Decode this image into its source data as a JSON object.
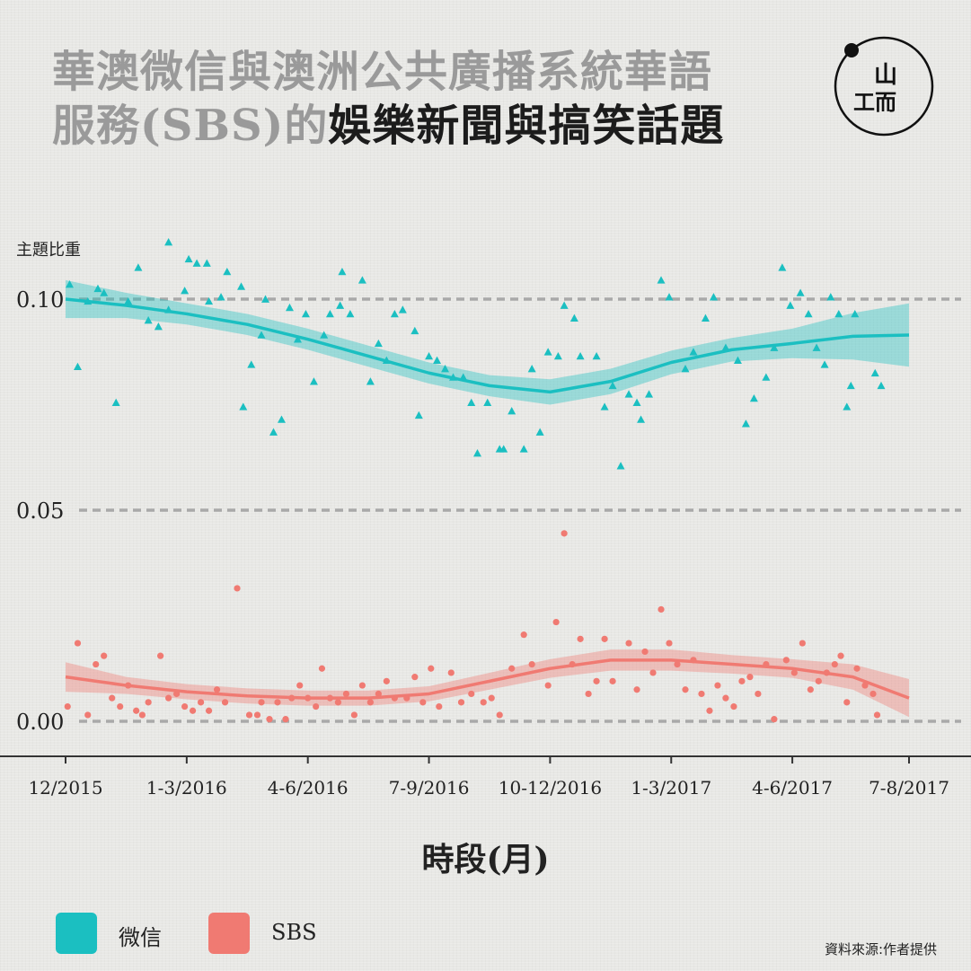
{
  "title": {
    "part1": "華澳微信與澳洲公共廣播系統華語",
    "part2": "服務(SBS)的",
    "part3": "娛樂新聞與搞笑話題"
  },
  "logo": {
    "glyph_top": "山",
    "glyph_bottom": "工而"
  },
  "source": "資料來源:作者提供",
  "colors": {
    "wechat": "#1bbfc1",
    "sbs": "#f07a72",
    "grid": "#a9a9a9",
    "axis": "#333333"
  },
  "chart_data": {
    "type": "scatter",
    "ylabel": "主題比重",
    "xlabel": "時段(月)",
    "ylim": [
      -0.004,
      0.112
    ],
    "yticks": [
      {
        "value": 0.1,
        "label": "0.10"
      },
      {
        "value": 0.05,
        "label": "0.05"
      },
      {
        "value": 0.0,
        "label": "0.00"
      }
    ],
    "xlim": [
      0,
      20
    ],
    "xticks": [
      {
        "x": 0,
        "label": "12/2015"
      },
      {
        "x": 3,
        "label": "1-3/2016"
      },
      {
        "x": 6,
        "label": "4-6/2016"
      },
      {
        "x": 9,
        "label": "7-9/2016"
      },
      {
        "x": 12,
        "label": "10-12/2016"
      },
      {
        "x": 15,
        "label": "1-3/2017"
      },
      {
        "x": 18,
        "label": "4-6/2017"
      },
      {
        "x": 21,
        "label": "7-8/2017"
      }
    ],
    "grid": "horizontal dashed",
    "legend_position": "bottom-left",
    "series": [
      {
        "name": "微信",
        "color": "#1bbfc1",
        "marker": "triangle",
        "smooth": {
          "x": [
            0,
            1.5,
            3,
            4.5,
            6,
            7.5,
            9,
            10.5,
            12,
            13.5,
            15,
            16.5,
            18,
            19.5,
            21
          ],
          "y": [
            0.1,
            0.0985,
            0.0965,
            0.094,
            0.0905,
            0.0865,
            0.0825,
            0.0795,
            0.078,
            0.0805,
            0.085,
            0.088,
            0.0895,
            0.0912,
            0.0915
          ],
          "band": [
            0.0045,
            0.003,
            0.0025,
            0.0025,
            0.0025,
            0.0025,
            0.0025,
            0.0025,
            0.003,
            0.003,
            0.0028,
            0.0028,
            0.0035,
            0.0055,
            0.0075
          ]
        },
        "points": [
          [
            0.1,
            0.1035
          ],
          [
            0.3,
            0.084
          ],
          [
            0.55,
            0.0995
          ],
          [
            0.8,
            0.1025
          ],
          [
            0.95,
            0.1015
          ],
          [
            1.25,
            0.0755
          ],
          [
            1.55,
            0.0995
          ],
          [
            1.8,
            0.1075
          ],
          [
            2.05,
            0.095
          ],
          [
            2.3,
            0.0935
          ],
          [
            2.55,
            0.0975
          ],
          [
            2.55,
            0.1135
          ],
          [
            2.95,
            0.102
          ],
          [
            3.05,
            0.1095
          ],
          [
            3.25,
            0.1085
          ],
          [
            3.5,
            0.1085
          ],
          [
            3.55,
            0.0995
          ],
          [
            3.85,
            0.1005
          ],
          [
            4.0,
            0.1065
          ],
          [
            4.35,
            0.103
          ],
          [
            4.4,
            0.0745
          ],
          [
            4.6,
            0.0845
          ],
          [
            4.85,
            0.0915
          ],
          [
            4.95,
            0.1
          ],
          [
            5.15,
            0.0685
          ],
          [
            5.35,
            0.0715
          ],
          [
            5.55,
            0.098
          ],
          [
            5.75,
            0.0905
          ],
          [
            5.95,
            0.0965
          ],
          [
            6.15,
            0.0805
          ],
          [
            6.4,
            0.0915
          ],
          [
            6.55,
            0.0965
          ],
          [
            6.8,
            0.0985
          ],
          [
            6.85,
            0.1065
          ],
          [
            7.05,
            0.0965
          ],
          [
            7.35,
            0.1045
          ],
          [
            7.55,
            0.0805
          ],
          [
            7.75,
            0.0895
          ],
          [
            7.95,
            0.0855
          ],
          [
            8.15,
            0.0965
          ],
          [
            8.35,
            0.0975
          ],
          [
            8.65,
            0.0925
          ],
          [
            8.75,
            0.0725
          ],
          [
            9.0,
            0.0865
          ],
          [
            9.2,
            0.0855
          ],
          [
            9.4,
            0.0835
          ],
          [
            9.6,
            0.0815
          ],
          [
            9.85,
            0.0815
          ],
          [
            10.05,
            0.0755
          ],
          [
            10.2,
            0.0635
          ],
          [
            10.45,
            0.0755
          ],
          [
            10.75,
            0.0645
          ],
          [
            10.85,
            0.0645
          ],
          [
            11.05,
            0.0735
          ],
          [
            11.35,
            0.0645
          ],
          [
            11.55,
            0.0835
          ],
          [
            11.75,
            0.0685
          ],
          [
            11.95,
            0.0875
          ],
          [
            12.2,
            0.0865
          ],
          [
            12.35,
            0.0985
          ],
          [
            12.6,
            0.0955
          ],
          [
            12.75,
            0.0865
          ],
          [
            13.15,
            0.0865
          ],
          [
            13.35,
            0.0745
          ],
          [
            13.55,
            0.0795
          ],
          [
            13.75,
            0.0605
          ],
          [
            13.95,
            0.0775
          ],
          [
            14.15,
            0.0755
          ],
          [
            14.25,
            0.0715
          ],
          [
            14.45,
            0.0775
          ],
          [
            14.75,
            0.1045
          ],
          [
            14.95,
            0.1005
          ],
          [
            15.35,
            0.0835
          ],
          [
            15.55,
            0.0875
          ],
          [
            15.85,
            0.0955
          ],
          [
            16.05,
            0.1005
          ],
          [
            16.35,
            0.0885
          ],
          [
            16.65,
            0.0855
          ],
          [
            16.85,
            0.0705
          ],
          [
            17.05,
            0.0765
          ],
          [
            17.35,
            0.0815
          ],
          [
            17.55,
            0.0885
          ],
          [
            17.75,
            0.1075
          ],
          [
            17.95,
            0.0985
          ],
          [
            18.2,
            0.1015
          ],
          [
            18.4,
            0.0965
          ],
          [
            18.6,
            0.0885
          ],
          [
            18.8,
            0.0845
          ],
          [
            18.95,
            0.1005
          ],
          [
            19.15,
            0.0965
          ],
          [
            19.35,
            0.0745
          ],
          [
            19.45,
            0.0795
          ],
          [
            19.55,
            0.0965
          ],
          [
            20.05,
            0.0825
          ],
          [
            20.2,
            0.0795
          ]
        ]
      },
      {
        "name": "SBS",
        "color": "#f07a72",
        "marker": "circle",
        "smooth": {
          "x": [
            0,
            1.5,
            3,
            4.5,
            6,
            7.5,
            9,
            10.5,
            12,
            13.5,
            15,
            16.5,
            18,
            19.5,
            21
          ],
          "y": [
            0.0105,
            0.0085,
            0.007,
            0.006,
            0.0055,
            0.0055,
            0.0065,
            0.0095,
            0.0125,
            0.0145,
            0.0145,
            0.0135,
            0.0125,
            0.0105,
            0.0055
          ],
          "band": [
            0.0035,
            0.002,
            0.0018,
            0.0018,
            0.0018,
            0.0018,
            0.0018,
            0.002,
            0.0022,
            0.0025,
            0.0025,
            0.0022,
            0.0022,
            0.003,
            0.0045
          ]
        },
        "points": [
          [
            0.05,
            0.0035
          ],
          [
            0.3,
            0.0185
          ],
          [
            0.55,
            0.0015
          ],
          [
            0.75,
            0.0135
          ],
          [
            0.95,
            0.0155
          ],
          [
            1.15,
            0.0055
          ],
          [
            1.35,
            0.0035
          ],
          [
            1.55,
            0.0085
          ],
          [
            1.75,
            0.0025
          ],
          [
            1.9,
            0.0015
          ],
          [
            2.05,
            0.0045
          ],
          [
            2.35,
            0.0155
          ],
          [
            2.55,
            0.0055
          ],
          [
            2.75,
            0.0065
          ],
          [
            2.95,
            0.0035
          ],
          [
            3.15,
            0.0025
          ],
          [
            3.35,
            0.0045
          ],
          [
            3.55,
            0.0025
          ],
          [
            3.75,
            0.0075
          ],
          [
            3.95,
            0.0045
          ],
          [
            4.25,
            0.0315
          ],
          [
            4.55,
            0.0015
          ],
          [
            4.75,
            0.0015
          ],
          [
            4.85,
            0.0045
          ],
          [
            5.05,
            0.0005
          ],
          [
            5.25,
            0.0045
          ],
          [
            5.45,
            0.0005
          ],
          [
            5.6,
            0.0055
          ],
          [
            5.8,
            0.0085
          ],
          [
            6.0,
            0.0055
          ],
          [
            6.2,
            0.0035
          ],
          [
            6.35,
            0.0125
          ],
          [
            6.55,
            0.0055
          ],
          [
            6.75,
            0.0045
          ],
          [
            6.95,
            0.0065
          ],
          [
            7.15,
            0.0015
          ],
          [
            7.35,
            0.0085
          ],
          [
            7.55,
            0.0045
          ],
          [
            7.75,
            0.0065
          ],
          [
            7.95,
            0.0095
          ],
          [
            8.15,
            0.0055
          ],
          [
            8.45,
            0.0055
          ],
          [
            8.65,
            0.0105
          ],
          [
            8.85,
            0.0045
          ],
          [
            9.05,
            0.0125
          ],
          [
            9.25,
            0.0035
          ],
          [
            9.55,
            0.0115
          ],
          [
            9.8,
            0.0045
          ],
          [
            10.05,
            0.0065
          ],
          [
            10.35,
            0.0045
          ],
          [
            10.55,
            0.0055
          ],
          [
            10.75,
            0.0015
          ],
          [
            11.05,
            0.0125
          ],
          [
            11.35,
            0.0205
          ],
          [
            11.55,
            0.0135
          ],
          [
            11.95,
            0.0085
          ],
          [
            12.15,
            0.0235
          ],
          [
            12.35,
            0.0445
          ],
          [
            12.55,
            0.0135
          ],
          [
            12.75,
            0.0195
          ],
          [
            12.95,
            0.0065
          ],
          [
            13.15,
            0.0095
          ],
          [
            13.35,
            0.0195
          ],
          [
            13.55,
            0.0095
          ],
          [
            13.95,
            0.0185
          ],
          [
            14.15,
            0.0075
          ],
          [
            14.35,
            0.0165
          ],
          [
            14.55,
            0.0115
          ],
          [
            14.75,
            0.0265
          ],
          [
            14.95,
            0.0185
          ],
          [
            15.15,
            0.0135
          ],
          [
            15.35,
            0.0075
          ],
          [
            15.55,
            0.0145
          ],
          [
            15.75,
            0.0065
          ],
          [
            15.95,
            0.0025
          ],
          [
            16.15,
            0.0085
          ],
          [
            16.35,
            0.0055
          ],
          [
            16.55,
            0.0035
          ],
          [
            16.75,
            0.0095
          ],
          [
            16.95,
            0.0105
          ],
          [
            17.15,
            0.0065
          ],
          [
            17.35,
            0.0135
          ],
          [
            17.55,
            0.0005
          ],
          [
            17.85,
            0.0145
          ],
          [
            18.05,
            0.0115
          ],
          [
            18.25,
            0.0185
          ],
          [
            18.45,
            0.0075
          ],
          [
            18.65,
            0.0095
          ],
          [
            18.85,
            0.0115
          ],
          [
            19.05,
            0.0135
          ],
          [
            19.2,
            0.0155
          ],
          [
            19.35,
            0.0045
          ],
          [
            19.6,
            0.0125
          ],
          [
            19.8,
            0.0085
          ],
          [
            20.0,
            0.0065
          ],
          [
            20.1,
            0.0015
          ]
        ]
      }
    ]
  }
}
